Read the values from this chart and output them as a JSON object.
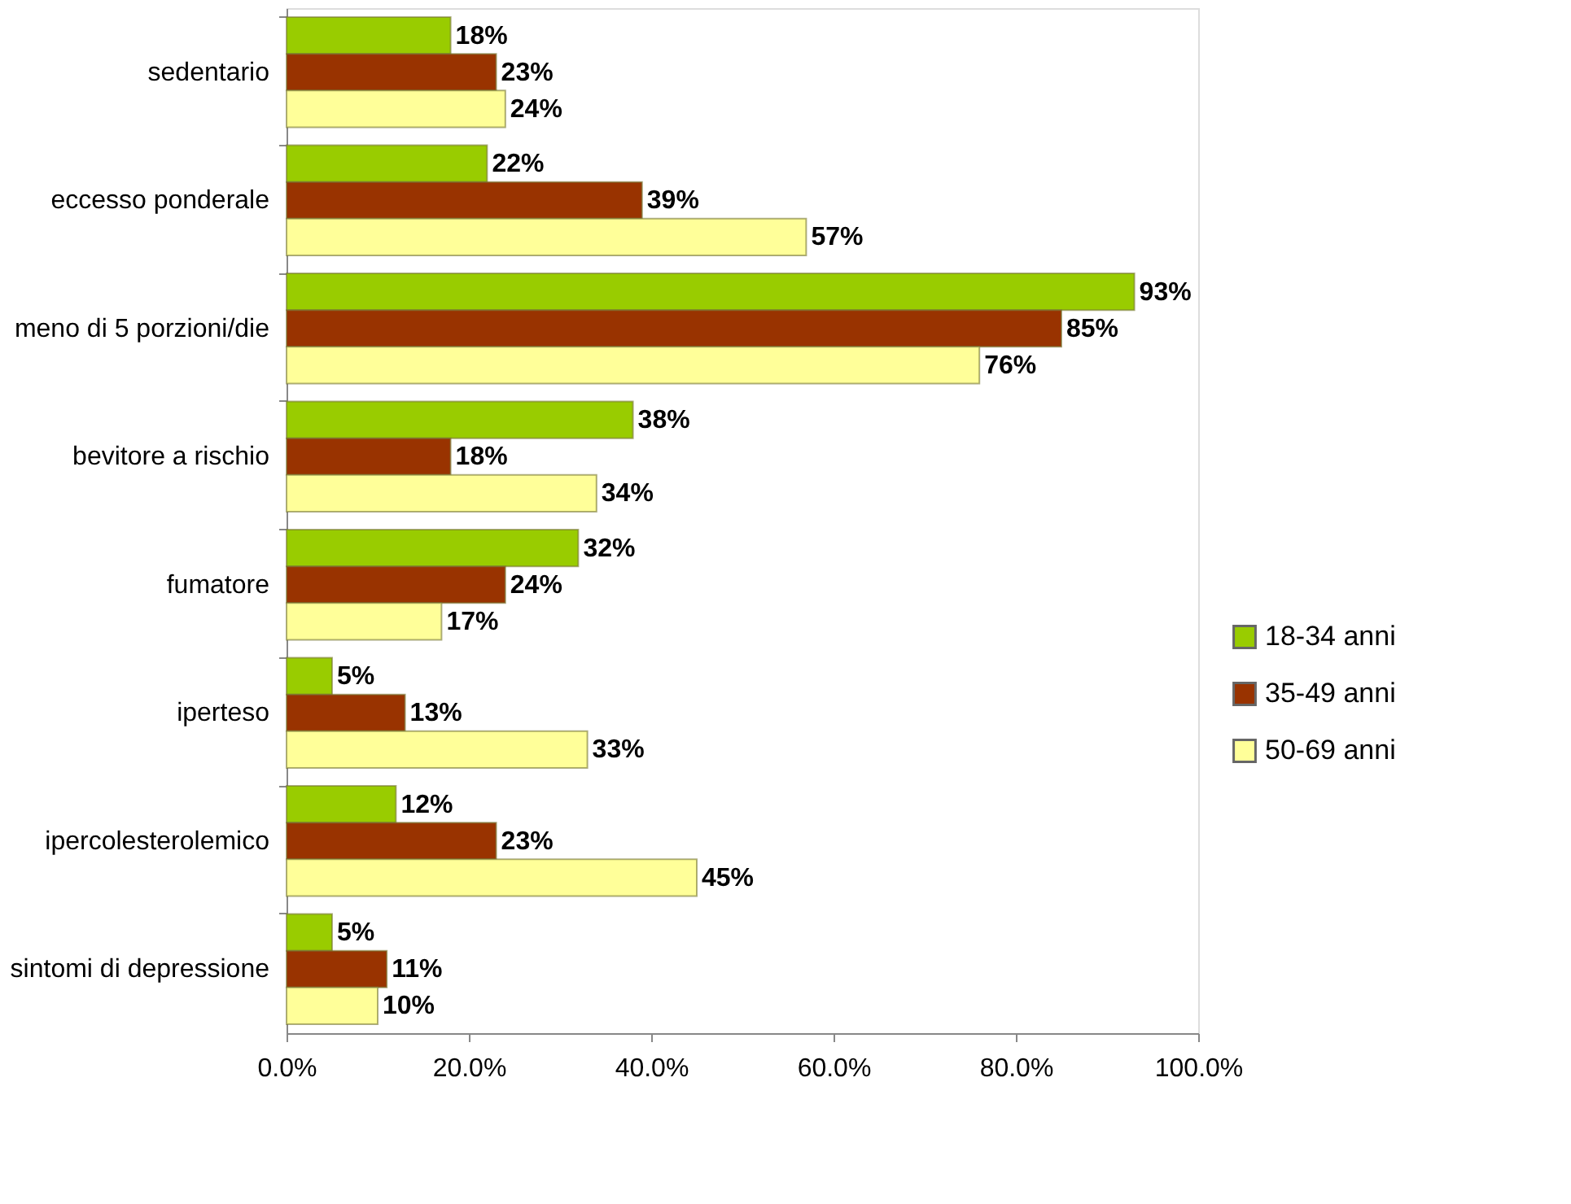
{
  "chart_data": {
    "type": "bar",
    "orientation": "horizontal",
    "categories": [
      "sedentario",
      "eccesso ponderale",
      "meno di 5 porzioni/die",
      "bevitore a rischio",
      "fumatore",
      "iperteso",
      "ipercolesterolemico",
      "sintomi di depressione"
    ],
    "series": [
      {
        "name": "18-34 anni",
        "color": "#99cc00",
        "values": [
          18,
          22,
          93,
          38,
          32,
          5,
          12,
          5
        ],
        "value_labels": [
          "18%",
          "22%",
          "93%",
          "38%",
          "32%",
          "5%",
          "12%",
          "5%"
        ]
      },
      {
        "name": "35-49 anni",
        "color": "#993300",
        "values": [
          23,
          39,
          85,
          18,
          24,
          13,
          23,
          11
        ],
        "value_labels": [
          "23%",
          "39%",
          "85%",
          "18%",
          "24%",
          "13%",
          "23%",
          "11%"
        ]
      },
      {
        "name": "50-69 anni",
        "color": "#ffff99",
        "values": [
          24,
          57,
          76,
          34,
          17,
          33,
          45,
          10
        ],
        "value_labels": [
          "24%",
          "57%",
          "76%",
          "34%",
          "17%",
          "33%",
          "45%",
          "10%"
        ]
      }
    ],
    "xlim": [
      0,
      100
    ],
    "xticks": [
      {
        "value": 0,
        "label": "0.0%"
      },
      {
        "value": 20,
        "label": "20.0%"
      },
      {
        "value": 40,
        "label": "40.0%"
      },
      {
        "value": 60,
        "label": "60.0%"
      },
      {
        "value": 80,
        "label": "80.0%"
      },
      {
        "value": 100,
        "label": "100.0%"
      }
    ],
    "grid": false,
    "legend": "right"
  }
}
